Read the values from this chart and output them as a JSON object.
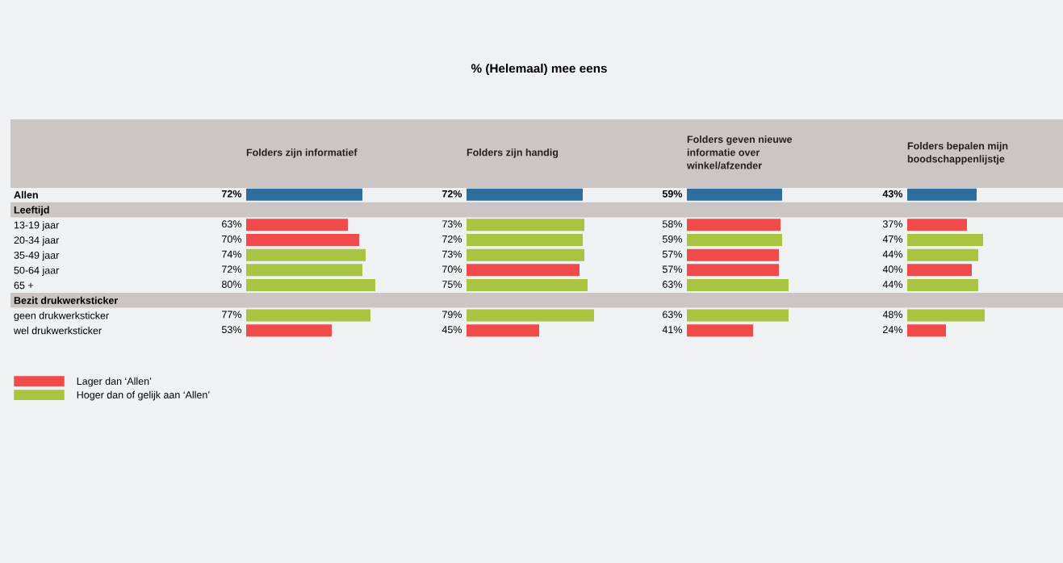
{
  "chart_data": [
    {
      "type": "bar",
      "orientation": "horizontal",
      "title": "Folders zijn informatief",
      "annotations": [
        "% (Helemaal) mee eens"
      ],
      "categories": [
        "Allen",
        "Leeftijd",
        "13-19 jaar",
        "20-34 jaar",
        "35-49 jaar",
        "50-64 jaar",
        "65 +",
        "Bezit drukwerksticker",
        "geen drukwerksticker",
        "wel drukwerksticker"
      ],
      "tick_labels": "y",
      "grid": false,
      "legend": "bottom left",
      "bands": [
        {
          "axis": "y",
          "from": "Leeftijd",
          "to": "Leeftijd",
          "color": "#cbc5c3"
        },
        {
          "axis": "y",
          "from": "Bezit drukwerksticker",
          "to": "Bezit drukwerksticker",
          "color": "#cbc5c3"
        }
      ],
      "series": [
        {
          "color": "#2e6e9e",
          "values": [
            72,
            null,
            null,
            null,
            null,
            null,
            null,
            null,
            null,
            null
          ],
          "value_labels": [
            "72%",
            null,
            null,
            null,
            null,
            null,
            null,
            null,
            null,
            null
          ]
        },
        {
          "name": "Lager dan ‘Allen’",
          "color": "#f04a4a",
          "values": [
            null,
            null,
            63,
            70,
            null,
            null,
            null,
            null,
            null,
            53
          ],
          "value_labels": [
            null,
            null,
            "63%",
            "70%",
            null,
            null,
            null,
            null,
            null,
            "53%"
          ]
        },
        {
          "name": "Hoger dan of gelijk aan ‘Allen’",
          "color": "#a8c440",
          "values": [
            null,
            null,
            null,
            null,
            74,
            72,
            80,
            null,
            77,
            null
          ],
          "value_labels": [
            null,
            null,
            null,
            null,
            "74%",
            "72%",
            "80%",
            null,
            "77%",
            null
          ]
        }
      ]
    },
    {
      "type": "bar",
      "orientation": "horizontal",
      "title": "Folders zijn handig",
      "tick_labels": false,
      "grid": false,
      "series": [
        {
          "color": "#2e6e9e",
          "values": [
            72,
            null,
            null,
            null,
            null,
            null,
            null,
            null,
            null,
            null
          ],
          "value_labels": [
            "72%",
            null,
            null,
            null,
            null,
            null,
            null,
            null,
            null,
            null
          ]
        },
        {
          "color": "#f04a4a",
          "values": [
            null,
            null,
            null,
            null,
            null,
            70,
            null,
            null,
            null,
            45
          ],
          "value_labels": [
            null,
            null,
            null,
            null,
            null,
            "70%",
            null,
            null,
            null,
            "45%"
          ]
        },
        {
          "color": "#a8c440",
          "values": [
            null,
            null,
            73,
            72,
            73,
            null,
            75,
            null,
            79,
            null
          ],
          "value_labels": [
            null,
            null,
            "73%",
            "72%",
            "73%",
            null,
            "75%",
            null,
            "79%",
            null
          ]
        }
      ]
    },
    {
      "type": "bar",
      "orientation": "horizontal",
      "title": "Folders geven nieuwe\ninformatie over\nwinkel/afzender",
      "tick_labels": false,
      "grid": false,
      "series": [
        {
          "color": "#2e6e9e",
          "values": [
            59,
            null,
            null,
            null,
            null,
            null,
            null,
            null,
            null,
            null
          ],
          "value_labels": [
            "59%",
            null,
            null,
            null,
            null,
            null,
            null,
            null,
            null,
            null
          ]
        },
        {
          "color": "#f04a4a",
          "values": [
            null,
            null,
            58,
            null,
            57,
            57,
            null,
            null,
            null,
            41
          ],
          "value_labels": [
            null,
            null,
            "58%",
            null,
            "57%",
            "57%",
            null,
            null,
            null,
            "41%"
          ]
        },
        {
          "color": "#a8c440",
          "values": [
            null,
            null,
            null,
            59,
            null,
            null,
            63,
            null,
            63,
            null
          ],
          "value_labels": [
            null,
            null,
            null,
            "59%",
            null,
            null,
            "63%",
            null,
            "63%",
            null
          ]
        }
      ]
    },
    {
      "type": "bar",
      "orientation": "horizontal",
      "title": "Folders bepalen mijn\nboodschappenlijstje",
      "tick_labels": false,
      "grid": false,
      "series": [
        {
          "color": "#2e6e9e",
          "values": [
            43,
            null,
            null,
            null,
            null,
            null,
            null,
            null,
            null,
            null
          ],
          "value_labels": [
            "43%",
            null,
            null,
            null,
            null,
            null,
            null,
            null,
            null,
            null
          ]
        },
        {
          "color": "#f04a4a",
          "values": [
            null,
            null,
            37,
            null,
            null,
            40,
            null,
            null,
            null,
            24
          ],
          "value_labels": [
            null,
            null,
            "37%",
            null,
            null,
            "40%",
            null,
            null,
            null,
            "24%"
          ]
        },
        {
          "color": "#a8c440",
          "values": [
            null,
            null,
            null,
            47,
            44,
            null,
            44,
            null,
            48,
            null
          ],
          "value_labels": [
            null,
            null,
            null,
            "47%",
            "44%",
            null,
            "44%",
            null,
            "48%",
            null
          ]
        }
      ]
    }
  ]
}
